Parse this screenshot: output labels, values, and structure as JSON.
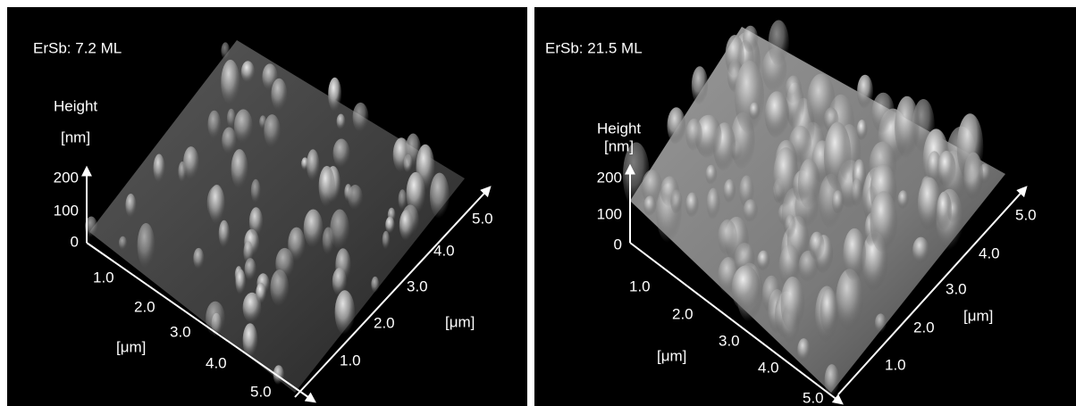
{
  "panels": [
    {
      "title": "ErSb: 7.2 ML",
      "height_label": "Height",
      "height_unit": "[nm]",
      "height_ticks": [
        "200",
        "100",
        "0"
      ],
      "x_ticks": [
        "1.0",
        "2.0",
        "3.0",
        "4.0",
        "5.0"
      ],
      "x_unit": "[μm]",
      "y_ticks": [
        "1.0",
        "2.0",
        "3.0",
        "4.0",
        "5.0"
      ],
      "y_unit": "[μm]"
    },
    {
      "title": "ErSb: 21.5 ML",
      "height_label": "Height",
      "height_unit": "[nm]",
      "height_ticks": [
        "200",
        "100",
        "0"
      ],
      "x_ticks": [
        "1.0",
        "2.0",
        "3.0",
        "4.0",
        "5.0"
      ],
      "x_unit": "[μm]",
      "y_ticks": [
        "1.0",
        "2.0",
        "3.0",
        "4.0",
        "5.0"
      ],
      "y_unit": "[μm]"
    }
  ]
}
